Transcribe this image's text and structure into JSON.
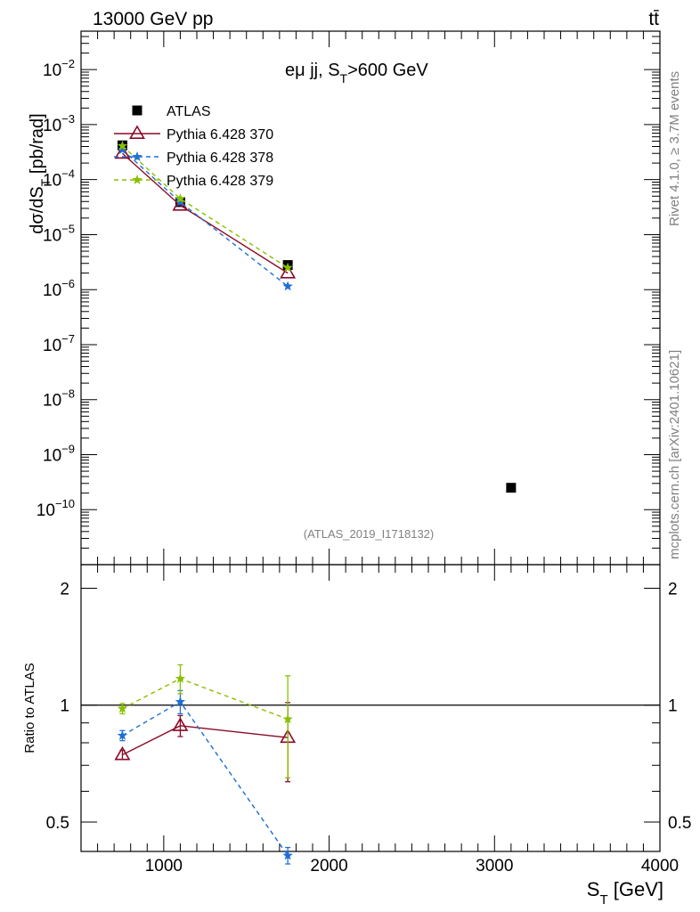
{
  "header": {
    "left": "13000 GeV pp",
    "right": "tt̄"
  },
  "side": {
    "rivet": "Rivet 4.1.0, ≥ 3.7M events",
    "source": "mcplots.cern.ch [arXiv:2401.10621]"
  },
  "analysis_label": "(ATLAS_2019_I1718132)",
  "chart_data": [
    {
      "type": "scatter",
      "title": "eμ jj, S_T>600 GeV",
      "ylabel": "dσ/dS_T [pb/rad]",
      "yscale": "log",
      "ylim": [
        1e-11,
        0.05
      ],
      "xlim": [
        500,
        4000
      ],
      "y_ticks": [
        "10^{-10}",
        "10^{-9}",
        "10^{-8}",
        "10^{-7}",
        "10^{-6}",
        "10^{-5}",
        "10^{-4}",
        "10^{-3}",
        "10^{-2}"
      ],
      "legend_position": "top-left",
      "series": [
        {
          "name": "ATLAS",
          "color": "#000000",
          "marker": "square",
          "x": [
            750,
            1100,
            1750,
            3100
          ],
          "y": [
            0.00042,
            3.9e-05,
            2.8e-06,
            2.5e-10
          ]
        },
        {
          "name": "Pythia 6.428 370",
          "color": "#8b0a26",
          "marker": "open-triangle",
          "line": "solid",
          "x": [
            750,
            1100,
            1750
          ],
          "y": [
            0.0003,
            3.4e-05,
            2e-06
          ]
        },
        {
          "name": "Pythia 6.428 378",
          "color": "#1f6fd6",
          "marker": "star",
          "line": "dashed",
          "x": [
            750,
            1100,
            1750
          ],
          "y": [
            0.00035,
            3.9e-05,
            1.15e-06
          ]
        },
        {
          "name": "Pythia 6.428 379",
          "color": "#88c000",
          "marker": "star",
          "line": "dashed",
          "x": [
            750,
            1100,
            1750
          ],
          "y": [
            0.00041,
            4.5e-05,
            2.5e-06
          ]
        }
      ]
    },
    {
      "type": "scatter",
      "ylabel": "Ratio to ATLAS",
      "xlabel": "S_T [GeV]",
      "yscale": "log",
      "ylim": [
        0.42,
        2.3
      ],
      "xlim": [
        500,
        4000
      ],
      "x_ticks": [
        "1000",
        "2000",
        "3000",
        "4000"
      ],
      "y_ticks": [
        "0.5",
        "1",
        "2"
      ],
      "reference_line": 1,
      "series": [
        {
          "name": "Pythia 6.428 370",
          "color": "#8b0a26",
          "marker": "open-triangle",
          "line": "solid",
          "x": [
            750,
            1100,
            1750
          ],
          "y": [
            0.745,
            0.885,
            0.825
          ],
          "err": [
            0.02,
            0.055,
            0.19
          ]
        },
        {
          "name": "Pythia 6.428 378",
          "color": "#1f6fd6",
          "marker": "star",
          "line": "dashed",
          "x": [
            750,
            1100,
            1750
          ],
          "y": [
            0.835,
            1.02,
            0.41
          ],
          "err": [
            0.025,
            0.07,
            0.02
          ]
        },
        {
          "name": "Pythia 6.428 379",
          "color": "#88c000",
          "marker": "star",
          "line": "dashed",
          "x": [
            750,
            1100,
            1750
          ],
          "y": [
            0.98,
            1.17,
            0.92
          ],
          "err": [
            0.03,
            0.1,
            0.27
          ]
        }
      ]
    }
  ]
}
